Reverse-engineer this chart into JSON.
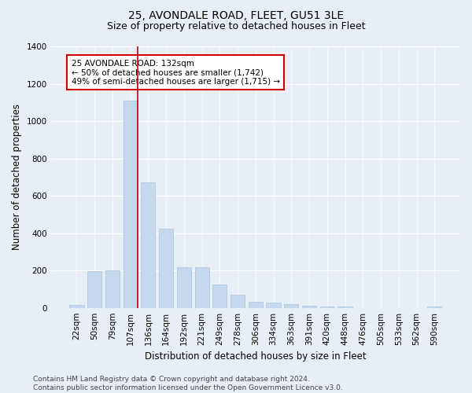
{
  "title": "25, AVONDALE ROAD, FLEET, GU51 3LE",
  "subtitle": "Size of property relative to detached houses in Fleet",
  "xlabel": "Distribution of detached houses by size in Fleet",
  "ylabel": "Number of detached properties",
  "categories": [
    "22sqm",
    "50sqm",
    "79sqm",
    "107sqm",
    "136sqm",
    "164sqm",
    "192sqm",
    "221sqm",
    "249sqm",
    "278sqm",
    "306sqm",
    "334sqm",
    "363sqm",
    "391sqm",
    "420sqm",
    "448sqm",
    "476sqm",
    "505sqm",
    "533sqm",
    "562sqm",
    "590sqm"
  ],
  "values": [
    15,
    195,
    200,
    1110,
    670,
    425,
    218,
    218,
    125,
    70,
    32,
    28,
    18,
    12,
    8,
    5,
    0,
    0,
    0,
    0,
    5
  ],
  "bar_color": "#c5d8ed",
  "bar_edgecolor": "#a8c4de",
  "vline_index": 3.4,
  "vline_color": "#cc0000",
  "annotation_text": "25 AVONDALE ROAD: 132sqm\n← 50% of detached houses are smaller (1,742)\n49% of semi-detached houses are larger (1,715) →",
  "annotation_box_facecolor": "#ffffff",
  "annotation_box_edgecolor": "#cc0000",
  "ylim": [
    0,
    1400
  ],
  "yticks": [
    0,
    200,
    400,
    600,
    800,
    1000,
    1200,
    1400
  ],
  "bg_color": "#e8eef5",
  "plot_bg_color": "#e8eef5",
  "footer": "Contains HM Land Registry data © Crown copyright and database right 2024.\nContains public sector information licensed under the Open Government Licence v3.0.",
  "title_fontsize": 10,
  "subtitle_fontsize": 9,
  "annotation_fontsize": 7.5,
  "axis_label_fontsize": 8.5,
  "tick_fontsize": 7.5,
  "footer_fontsize": 6.5
}
